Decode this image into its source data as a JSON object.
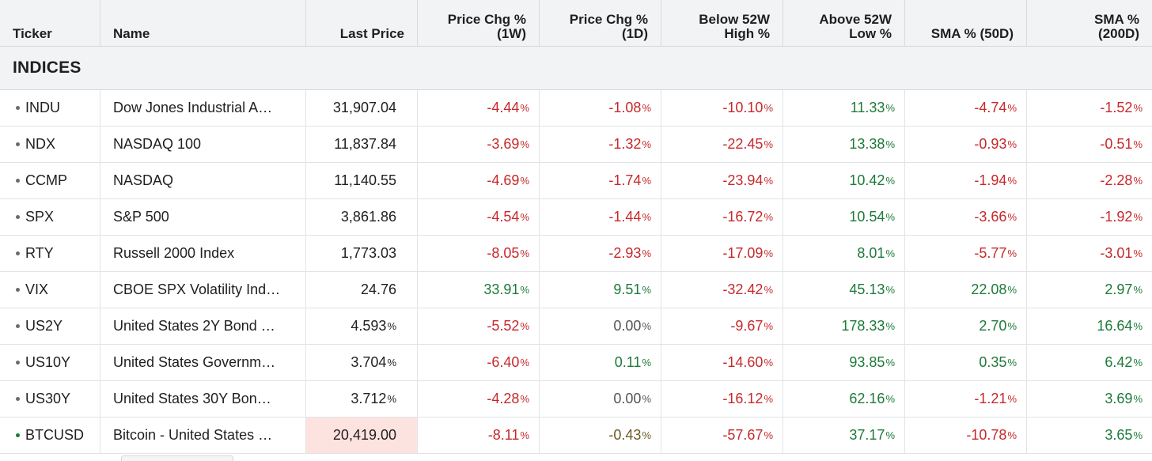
{
  "header": {
    "ticker": "Ticker",
    "name": "Name",
    "last_price": "Last Price",
    "chg_1w": "Price Chg %\n(1W)",
    "chg_1d": "Price Chg %\n(1D)",
    "below_52w": "Below 52W\nHigh %",
    "above_52w": "Above 52W\nLow %",
    "sma_50": "SMA % (50D)",
    "sma_200": "SMA %\n(200D)"
  },
  "section": {
    "title": "INDICES"
  },
  "rows": [
    {
      "ticker": "INDU",
      "name": "Dow Jones Industrial A…",
      "last": "31,907.04",
      "last_pct": false,
      "chg_1w": "-4.44",
      "chg_1d": "-1.08",
      "below_52w": "-10.10",
      "above_52w": "11.33",
      "sma_50": "-4.74",
      "sma_200": "-1.52",
      "colors": [
        "neg",
        "neg",
        "neg",
        "pos",
        "neg",
        "neg"
      ]
    },
    {
      "ticker": "NDX",
      "name": "NASDAQ 100",
      "last": "11,837.84",
      "last_pct": false,
      "chg_1w": "-3.69",
      "chg_1d": "-1.32",
      "below_52w": "-22.45",
      "above_52w": "13.38",
      "sma_50": "-0.93",
      "sma_200": "-0.51",
      "colors": [
        "neg",
        "neg",
        "neg",
        "pos",
        "neg",
        "neg"
      ]
    },
    {
      "ticker": "CCMP",
      "name": "NASDAQ",
      "last": "11,140.55",
      "last_pct": false,
      "chg_1w": "-4.69",
      "chg_1d": "-1.74",
      "below_52w": "-23.94",
      "above_52w": "10.42",
      "sma_50": "-1.94",
      "sma_200": "-2.28",
      "colors": [
        "neg",
        "neg",
        "neg",
        "pos",
        "neg",
        "neg"
      ]
    },
    {
      "ticker": "SPX",
      "name": "S&P 500",
      "last": "3,861.86",
      "last_pct": false,
      "chg_1w": "-4.54",
      "chg_1d": "-1.44",
      "below_52w": "-16.72",
      "above_52w": "10.54",
      "sma_50": "-3.66",
      "sma_200": "-1.92",
      "colors": [
        "neg",
        "neg",
        "neg",
        "pos",
        "neg",
        "neg"
      ]
    },
    {
      "ticker": "RTY",
      "name": "Russell 2000 Index",
      "last": "1,773.03",
      "last_pct": false,
      "chg_1w": "-8.05",
      "chg_1d": "-2.93",
      "below_52w": "-17.09",
      "above_52w": "8.01",
      "sma_50": "-5.77",
      "sma_200": "-3.01",
      "colors": [
        "neg",
        "neg",
        "neg",
        "pos",
        "neg",
        "neg"
      ]
    },
    {
      "ticker": "VIX",
      "name": "CBOE SPX Volatility Ind…",
      "last": "24.76",
      "last_pct": false,
      "chg_1w": "33.91",
      "chg_1d": "9.51",
      "below_52w": "-32.42",
      "above_52w": "45.13",
      "sma_50": "22.08",
      "sma_200": "2.97",
      "colors": [
        "pos",
        "pos",
        "neg",
        "pos",
        "pos",
        "pos"
      ]
    },
    {
      "ticker": "US2Y",
      "name": "United States 2Y Bond …",
      "last": "4.593",
      "last_pct": true,
      "chg_1w": "-5.52",
      "chg_1d": "0.00",
      "below_52w": "-9.67",
      "above_52w": "178.33",
      "sma_50": "2.70",
      "sma_200": "16.64",
      "colors": [
        "neg",
        "flat",
        "neg",
        "pos",
        "pos",
        "pos"
      ]
    },
    {
      "ticker": "US10Y",
      "name": "United States Governm…",
      "last": "3.704",
      "last_pct": true,
      "chg_1w": "-6.40",
      "chg_1d": "0.11",
      "below_52w": "-14.60",
      "above_52w": "93.85",
      "sma_50": "0.35",
      "sma_200": "6.42",
      "colors": [
        "neg",
        "pos",
        "neg",
        "pos",
        "pos",
        "pos"
      ]
    },
    {
      "ticker": "US30Y",
      "name": "United States 30Y Bon…",
      "last": "3.712",
      "last_pct": true,
      "chg_1w": "-4.28",
      "chg_1d": "0.00",
      "below_52w": "-16.12",
      "above_52w": "62.16",
      "sma_50": "-1.21",
      "sma_200": "3.69",
      "colors": [
        "neg",
        "flat",
        "neg",
        "pos",
        "neg",
        "pos"
      ]
    },
    {
      "ticker": "BTCUSD",
      "name": "Bitcoin - United States …",
      "last": "20,419.00",
      "last_pct": false,
      "highlight": true,
      "live": true,
      "chg_1w": "-8.11",
      "chg_1d": "-0.43",
      "below_52w": "-57.67",
      "above_52w": "37.17",
      "sma_50": "-10.78",
      "sma_200": "3.65",
      "colors": [
        "neg",
        "olive",
        "neg",
        "pos",
        "neg",
        "pos"
      ]
    }
  ],
  "pct_symbol": "%",
  "colors": {
    "negative": "#c8282a",
    "positive": "#1d7a3a",
    "neutral": "#555555",
    "highlight_bg": "#fde3df",
    "header_bg": "#f2f3f5"
  }
}
